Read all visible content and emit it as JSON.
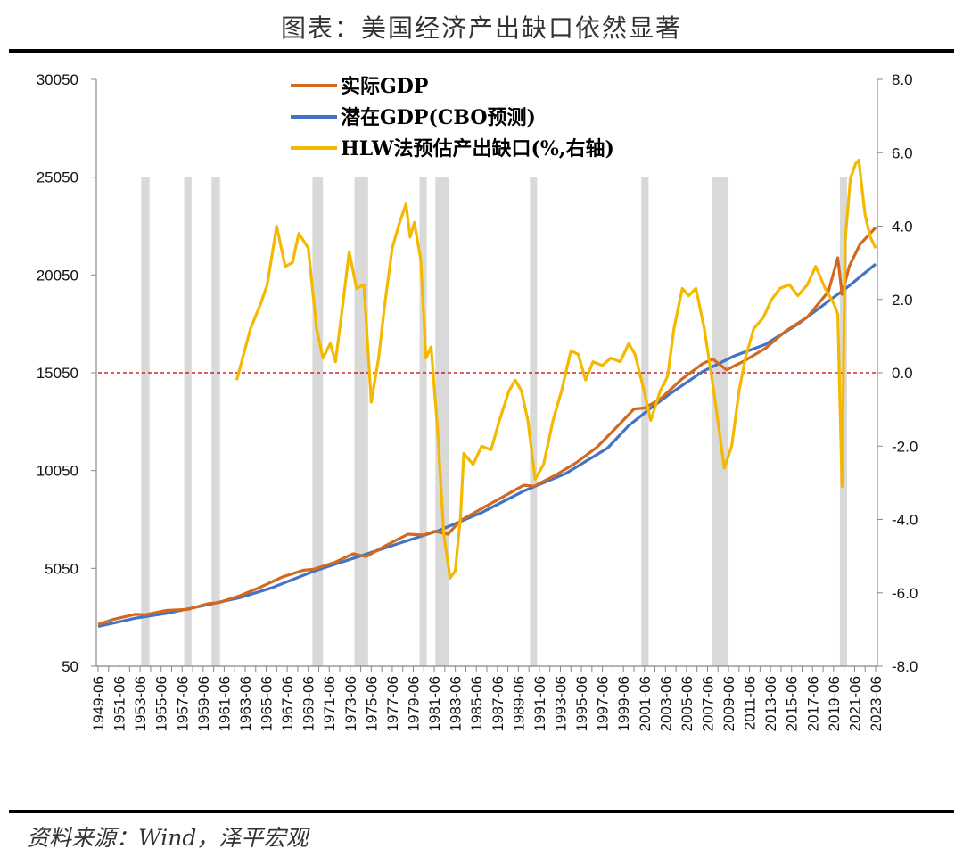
{
  "header": {
    "title": "图表：美国经济产出缺口依然显著"
  },
  "footer": {
    "source": "资料来源：Wind，泽平宏观"
  },
  "chart_data": {
    "type": "line",
    "title": "",
    "xlabel": "",
    "ylabel_left": "",
    "ylabel_right": "",
    "x_ticks": [
      "1949-06",
      "1951-06",
      "1953-06",
      "1955-06",
      "1957-06",
      "1959-06",
      "1961-06",
      "1963-06",
      "1965-06",
      "1967-06",
      "1969-06",
      "1971-06",
      "1973-06",
      "1975-06",
      "1977-06",
      "1979-06",
      "1981-06",
      "1983-06",
      "1985-06",
      "1987-06",
      "1989-06",
      "1991-06",
      "1993-06",
      "1995-06",
      "1997-06",
      "1999-06",
      "2001-06",
      "2003-06",
      "2005-06",
      "2007-06",
      "2009-06",
      "2011-06",
      "2013-06",
      "2015-06",
      "2017-06",
      "2019-06",
      "2021-06",
      "2023-06"
    ],
    "xlim": [
      1949.5,
      2023.5
    ],
    "y_left": {
      "range": [
        50,
        30050
      ],
      "ticks": [
        "50",
        "5050",
        "10050",
        "15050",
        "20050",
        "25050",
        "30050"
      ]
    },
    "y_right": {
      "range": [
        -8,
        8
      ],
      "ticks": [
        "-8.0",
        "-6.0",
        "-4.0",
        "-2.0",
        "0.0",
        "2.0",
        "4.0",
        "6.0",
        "8.0"
      ]
    },
    "reference_line": {
      "axis": "right",
      "value": 0,
      "color": "#c00000",
      "style": "dashed"
    },
    "recessions": [
      [
        1953.6,
        1954.4
      ],
      [
        1957.7,
        1958.4
      ],
      [
        1960.3,
        1961.1
      ],
      [
        1969.9,
        1970.9
      ],
      [
        1973.9,
        1975.2
      ],
      [
        1980.1,
        1980.6
      ],
      [
        1981.6,
        1982.9
      ],
      [
        1990.6,
        1991.2
      ],
      [
        2001.2,
        2001.9
      ],
      [
        2007.9,
        2009.5
      ],
      [
        2020.1,
        2020.4
      ]
    ],
    "recession_color": "#d9d9d9",
    "legend": {
      "placement": "top-left"
    },
    "series": [
      {
        "name": "实际GDP",
        "axis": "left",
        "color": "#d2691e",
        "points": [
          [
            1949.5,
            2190
          ],
          [
            1951,
            2450
          ],
          [
            1953,
            2700
          ],
          [
            1954,
            2680
          ],
          [
            1956,
            2900
          ],
          [
            1958,
            2950
          ],
          [
            1960,
            3250
          ],
          [
            1961,
            3300
          ],
          [
            1963,
            3650
          ],
          [
            1965,
            4100
          ],
          [
            1967,
            4600
          ],
          [
            1969,
            4950
          ],
          [
            1970,
            5000
          ],
          [
            1972,
            5350
          ],
          [
            1973.8,
            5800
          ],
          [
            1975,
            5650
          ],
          [
            1977,
            6250
          ],
          [
            1979,
            6800
          ],
          [
            1980.5,
            6750
          ],
          [
            1981.5,
            6950
          ],
          [
            1982.8,
            6800
          ],
          [
            1984,
            7500
          ],
          [
            1986,
            8100
          ],
          [
            1988,
            8700
          ],
          [
            1990,
            9300
          ],
          [
            1991,
            9250
          ],
          [
            1993,
            9800
          ],
          [
            1995,
            10450
          ],
          [
            1997,
            11250
          ],
          [
            1999,
            12350
          ],
          [
            2000.5,
            13200
          ],
          [
            2001.5,
            13250
          ],
          [
            2003,
            13700
          ],
          [
            2005,
            14700
          ],
          [
            2007,
            15500
          ],
          [
            2008,
            15750
          ],
          [
            2009.3,
            15200
          ],
          [
            2011,
            15650
          ],
          [
            2013,
            16300
          ],
          [
            2015,
            17200
          ],
          [
            2017,
            17900
          ],
          [
            2019,
            19200
          ],
          [
            2019.9,
            20930
          ],
          [
            2020.3,
            19060
          ],
          [
            2021,
            20500
          ],
          [
            2022,
            21600
          ],
          [
            2023.5,
            22480
          ]
        ]
      },
      {
        "name": "潜在GDP(CBO预测)",
        "axis": "left",
        "color": "#4472c4",
        "points": [
          [
            1949.5,
            2080
          ],
          [
            1953,
            2500
          ],
          [
            1956,
            2750
          ],
          [
            1960,
            3200
          ],
          [
            1963,
            3550
          ],
          [
            1966,
            4050
          ],
          [
            1970,
            4900
          ],
          [
            1974,
            5600
          ],
          [
            1978,
            6300
          ],
          [
            1982,
            7000
          ],
          [
            1986,
            7900
          ],
          [
            1990,
            9000
          ],
          [
            1994,
            9900
          ],
          [
            1998,
            11200
          ],
          [
            2000,
            12350
          ],
          [
            2002,
            13200
          ],
          [
            2004,
            14000
          ],
          [
            2007,
            15100
          ],
          [
            2010,
            15900
          ],
          [
            2013,
            16500
          ],
          [
            2016,
            17500
          ],
          [
            2019,
            18700
          ],
          [
            2021,
            19500
          ],
          [
            2023.5,
            20610
          ]
        ]
      },
      {
        "name": "HLW法预估产出缺口(%,右轴)",
        "axis": "right",
        "color": "#f5b800",
        "points": [
          [
            1962.7,
            -0.2
          ],
          [
            1964,
            1.2
          ],
          [
            1965,
            1.9
          ],
          [
            1965.6,
            2.4
          ],
          [
            1966.5,
            4.0
          ],
          [
            1967.3,
            2.9
          ],
          [
            1968,
            3.0
          ],
          [
            1968.6,
            3.8
          ],
          [
            1969.5,
            3.4
          ],
          [
            1970.3,
            1.2
          ],
          [
            1970.9,
            0.4
          ],
          [
            1971.6,
            0.8
          ],
          [
            1972.1,
            0.3
          ],
          [
            1972.8,
            1.9
          ],
          [
            1973.4,
            3.3
          ],
          [
            1974.1,
            2.3
          ],
          [
            1974.8,
            2.4
          ],
          [
            1975.5,
            -0.8
          ],
          [
            1976.2,
            0.4
          ],
          [
            1976.8,
            1.9
          ],
          [
            1977.5,
            3.4
          ],
          [
            1978.2,
            4.1
          ],
          [
            1978.8,
            4.6
          ],
          [
            1979.2,
            3.7
          ],
          [
            1979.6,
            4.1
          ],
          [
            1980.2,
            3.1
          ],
          [
            1980.7,
            0.4
          ],
          [
            1981.2,
            0.7
          ],
          [
            1981.8,
            -1.5
          ],
          [
            1982.4,
            -4.4
          ],
          [
            1983,
            -5.6
          ],
          [
            1983.5,
            -5.4
          ],
          [
            1984,
            -3.9
          ],
          [
            1984.3,
            -2.2
          ],
          [
            1985.2,
            -2.5
          ],
          [
            1986,
            -2.0
          ],
          [
            1986.9,
            -2.1
          ],
          [
            1987.7,
            -1.3
          ],
          [
            1988.6,
            -0.5
          ],
          [
            1989.2,
            -0.2
          ],
          [
            1989.8,
            -0.5
          ],
          [
            1990.4,
            -1.3
          ],
          [
            1991.1,
            -2.9
          ],
          [
            1991.9,
            -2.5
          ],
          [
            1992.8,
            -1.3
          ],
          [
            1993.6,
            -0.5
          ],
          [
            1994.5,
            0.6
          ],
          [
            1995.2,
            0.5
          ],
          [
            1995.9,
            -0.2
          ],
          [
            1996.6,
            0.3
          ],
          [
            1997.5,
            0.2
          ],
          [
            1998.3,
            0.4
          ],
          [
            1999.2,
            0.3
          ],
          [
            2000,
            0.8
          ],
          [
            2000.6,
            0.5
          ],
          [
            2001.3,
            -0.3
          ],
          [
            2002.1,
            -1.3
          ],
          [
            2003,
            -0.5
          ],
          [
            2003.7,
            -0.1
          ],
          [
            2004.3,
            1.2
          ],
          [
            2005.1,
            2.3
          ],
          [
            2005.7,
            2.1
          ],
          [
            2006.4,
            2.3
          ],
          [
            2007.2,
            1.2
          ],
          [
            2008.1,
            -0.5
          ],
          [
            2009.1,
            -2.6
          ],
          [
            2009.8,
            -2.0
          ],
          [
            2010.5,
            -0.5
          ],
          [
            2011.1,
            0.4
          ],
          [
            2011.9,
            1.2
          ],
          [
            2012.8,
            1.5
          ],
          [
            2013.6,
            2.0
          ],
          [
            2014.4,
            2.3
          ],
          [
            2015.3,
            2.4
          ],
          [
            2016.1,
            2.1
          ],
          [
            2017,
            2.4
          ],
          [
            2017.8,
            2.9
          ],
          [
            2018.7,
            2.3
          ],
          [
            2019.5,
            1.9
          ],
          [
            2019.9,
            1.6
          ],
          [
            2020.3,
            -3.1
          ],
          [
            2020.6,
            3.6
          ],
          [
            2021.1,
            5.3
          ],
          [
            2021.6,
            5.7
          ],
          [
            2021.9,
            5.8
          ],
          [
            2022.5,
            4.3
          ],
          [
            2023,
            3.7
          ],
          [
            2023.5,
            3.4
          ]
        ]
      }
    ]
  }
}
